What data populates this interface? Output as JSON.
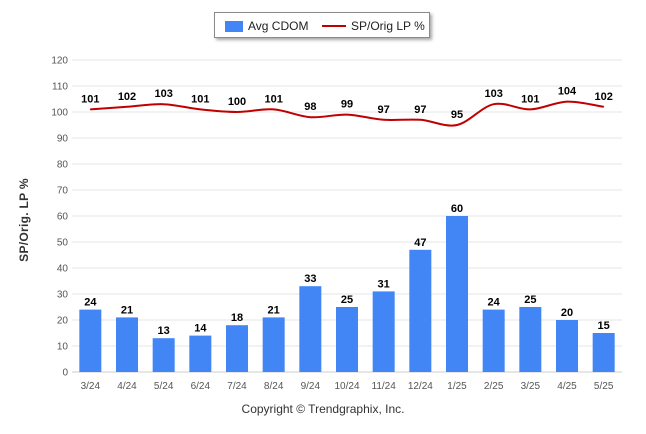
{
  "legend": {
    "bar_label": "Avg CDOM",
    "line_label": "SP/Orig LP %"
  },
  "footer": {
    "copyright": "Copyright © Trendgraphix, Inc."
  },
  "colors": {
    "bar": "#4285f4",
    "line": "#c00000",
    "grid": "#e6e6e6",
    "axis_text": "#555555"
  },
  "chart_data": {
    "type": "bar",
    "categories": [
      "3/24",
      "4/24",
      "5/24",
      "6/24",
      "7/24",
      "8/24",
      "9/24",
      "10/24",
      "11/24",
      "12/24",
      "1/25",
      "2/25",
      "3/25",
      "4/25",
      "5/25"
    ],
    "series": [
      {
        "name": "Avg CDOM",
        "type": "bar",
        "values": [
          24,
          21,
          13,
          14,
          18,
          21,
          33,
          25,
          31,
          47,
          60,
          24,
          25,
          20,
          15
        ]
      },
      {
        "name": "SP/Orig LP %",
        "type": "line",
        "values": [
          101,
          102,
          103,
          101,
          100,
          101,
          98,
          99,
          97,
          97,
          95,
          103,
          101,
          104,
          102
        ]
      }
    ],
    "ylabel": "SP/Orig. LP %",
    "ylim": [
      0,
      120
    ],
    "yticks": [
      0,
      10,
      20,
      30,
      40,
      50,
      60,
      70,
      80,
      90,
      100,
      110,
      120
    ],
    "grid": true,
    "legend_position": "top-center"
  }
}
